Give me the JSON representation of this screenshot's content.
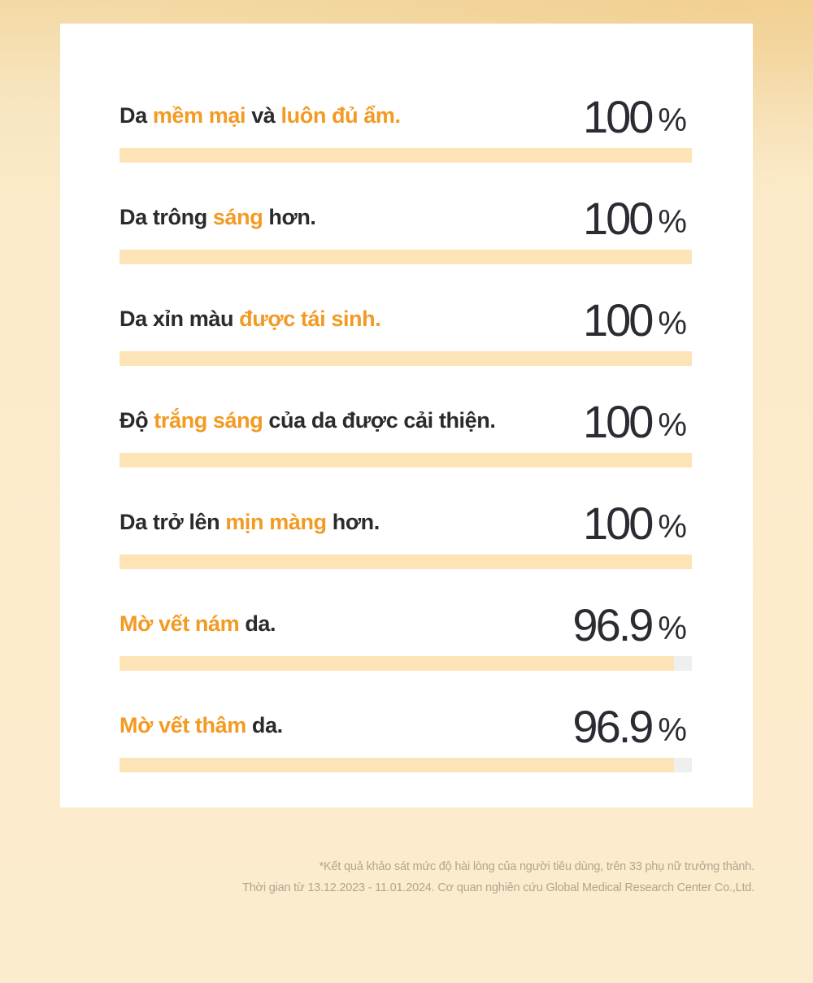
{
  "chart_data": {
    "type": "bar",
    "orientation": "horizontal",
    "unit": "%",
    "xlim": [
      0,
      100
    ],
    "colors": {
      "fill": "#fde4b6",
      "track": "#efefef",
      "highlight": "#f39a23",
      "text": "#2b2b2b"
    },
    "items": [
      {
        "parts": [
          {
            "text": "Da ",
            "hl": false
          },
          {
            "text": "mềm mại",
            "hl": true
          },
          {
            "text": " và ",
            "hl": false
          },
          {
            "text": "luôn đủ ẩm.",
            "hl": true
          }
        ],
        "value": 100,
        "value_label": "100"
      },
      {
        "parts": [
          {
            "text": "Da trông ",
            "hl": false
          },
          {
            "text": "sáng",
            "hl": true
          },
          {
            "text": " hơn.",
            "hl": false
          }
        ],
        "value": 100,
        "value_label": "100"
      },
      {
        "parts": [
          {
            "text": "Da xỉn màu ",
            "hl": false
          },
          {
            "text": "được tái sinh.",
            "hl": true
          }
        ],
        "value": 100,
        "value_label": "100"
      },
      {
        "parts": [
          {
            "text": "Độ ",
            "hl": false
          },
          {
            "text": "trắng sáng",
            "hl": true
          },
          {
            "text": " của da được cải thiện.",
            "hl": false
          }
        ],
        "value": 100,
        "value_label": "100"
      },
      {
        "parts": [
          {
            "text": "Da trở lên ",
            "hl": false
          },
          {
            "text": "mịn màng",
            "hl": true
          },
          {
            "text": " hơn.",
            "hl": false
          }
        ],
        "value": 100,
        "value_label": "100"
      },
      {
        "parts": [
          {
            "text": "Mờ vết nám",
            "hl": true
          },
          {
            "text": " da.",
            "hl": false
          }
        ],
        "value": 96.9,
        "value_label": "96.9"
      },
      {
        "parts": [
          {
            "text": "Mờ vết thâm",
            "hl": true
          },
          {
            "text": " da.",
            "hl": false
          }
        ],
        "value": 96.9,
        "value_label": "96.9"
      }
    ]
  },
  "footnote": {
    "line1": "*Kết quả khảo sát mức độ hài lòng của người tiêu dùng, trên 33 phụ nữ trưởng thành.",
    "line2": "Thời gian từ 13.12.2023 - 11.01.2024. Cơ quan nghiên cứu Global Medical Research Center Co.,Ltd."
  }
}
